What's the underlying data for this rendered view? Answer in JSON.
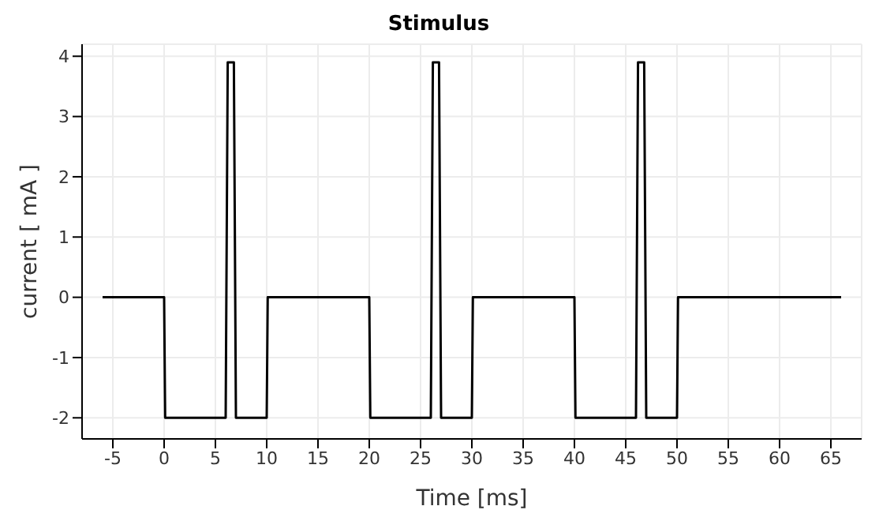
{
  "chart_data": {
    "type": "line",
    "title": "Stimulus",
    "xlabel": "Time [ms]",
    "ylabel": "current [ mA ]",
    "x": [
      -6,
      0,
      0.1,
      6,
      6.2,
      6.8,
      7,
      10,
      10.1,
      20,
      20.1,
      26,
      26.2,
      26.8,
      27,
      30,
      30.1,
      40,
      40.1,
      46,
      46.2,
      46.8,
      47,
      50,
      50.1,
      66
    ],
    "series": [
      {
        "color": "#000000",
        "values": [
          0,
          0,
          -2,
          -2,
          3.9,
          3.9,
          -2,
          -2,
          0,
          0,
          -2,
          -2,
          3.9,
          3.9,
          -2,
          -2,
          0,
          0,
          -2,
          -2,
          3.9,
          3.9,
          -2,
          -2,
          0,
          0
        ]
      }
    ],
    "xlim": [
      -8,
      68
    ],
    "xticks": [
      -5,
      0,
      5,
      10,
      15,
      20,
      25,
      30,
      35,
      40,
      45,
      50,
      55,
      60,
      65
    ],
    "ylim": [
      -2.35,
      4.2
    ],
    "yticks": [
      -2,
      -1,
      0,
      1,
      2,
      3,
      4
    ],
    "grid": true,
    "legend": false,
    "marker": "none",
    "line_style": "solid"
  }
}
